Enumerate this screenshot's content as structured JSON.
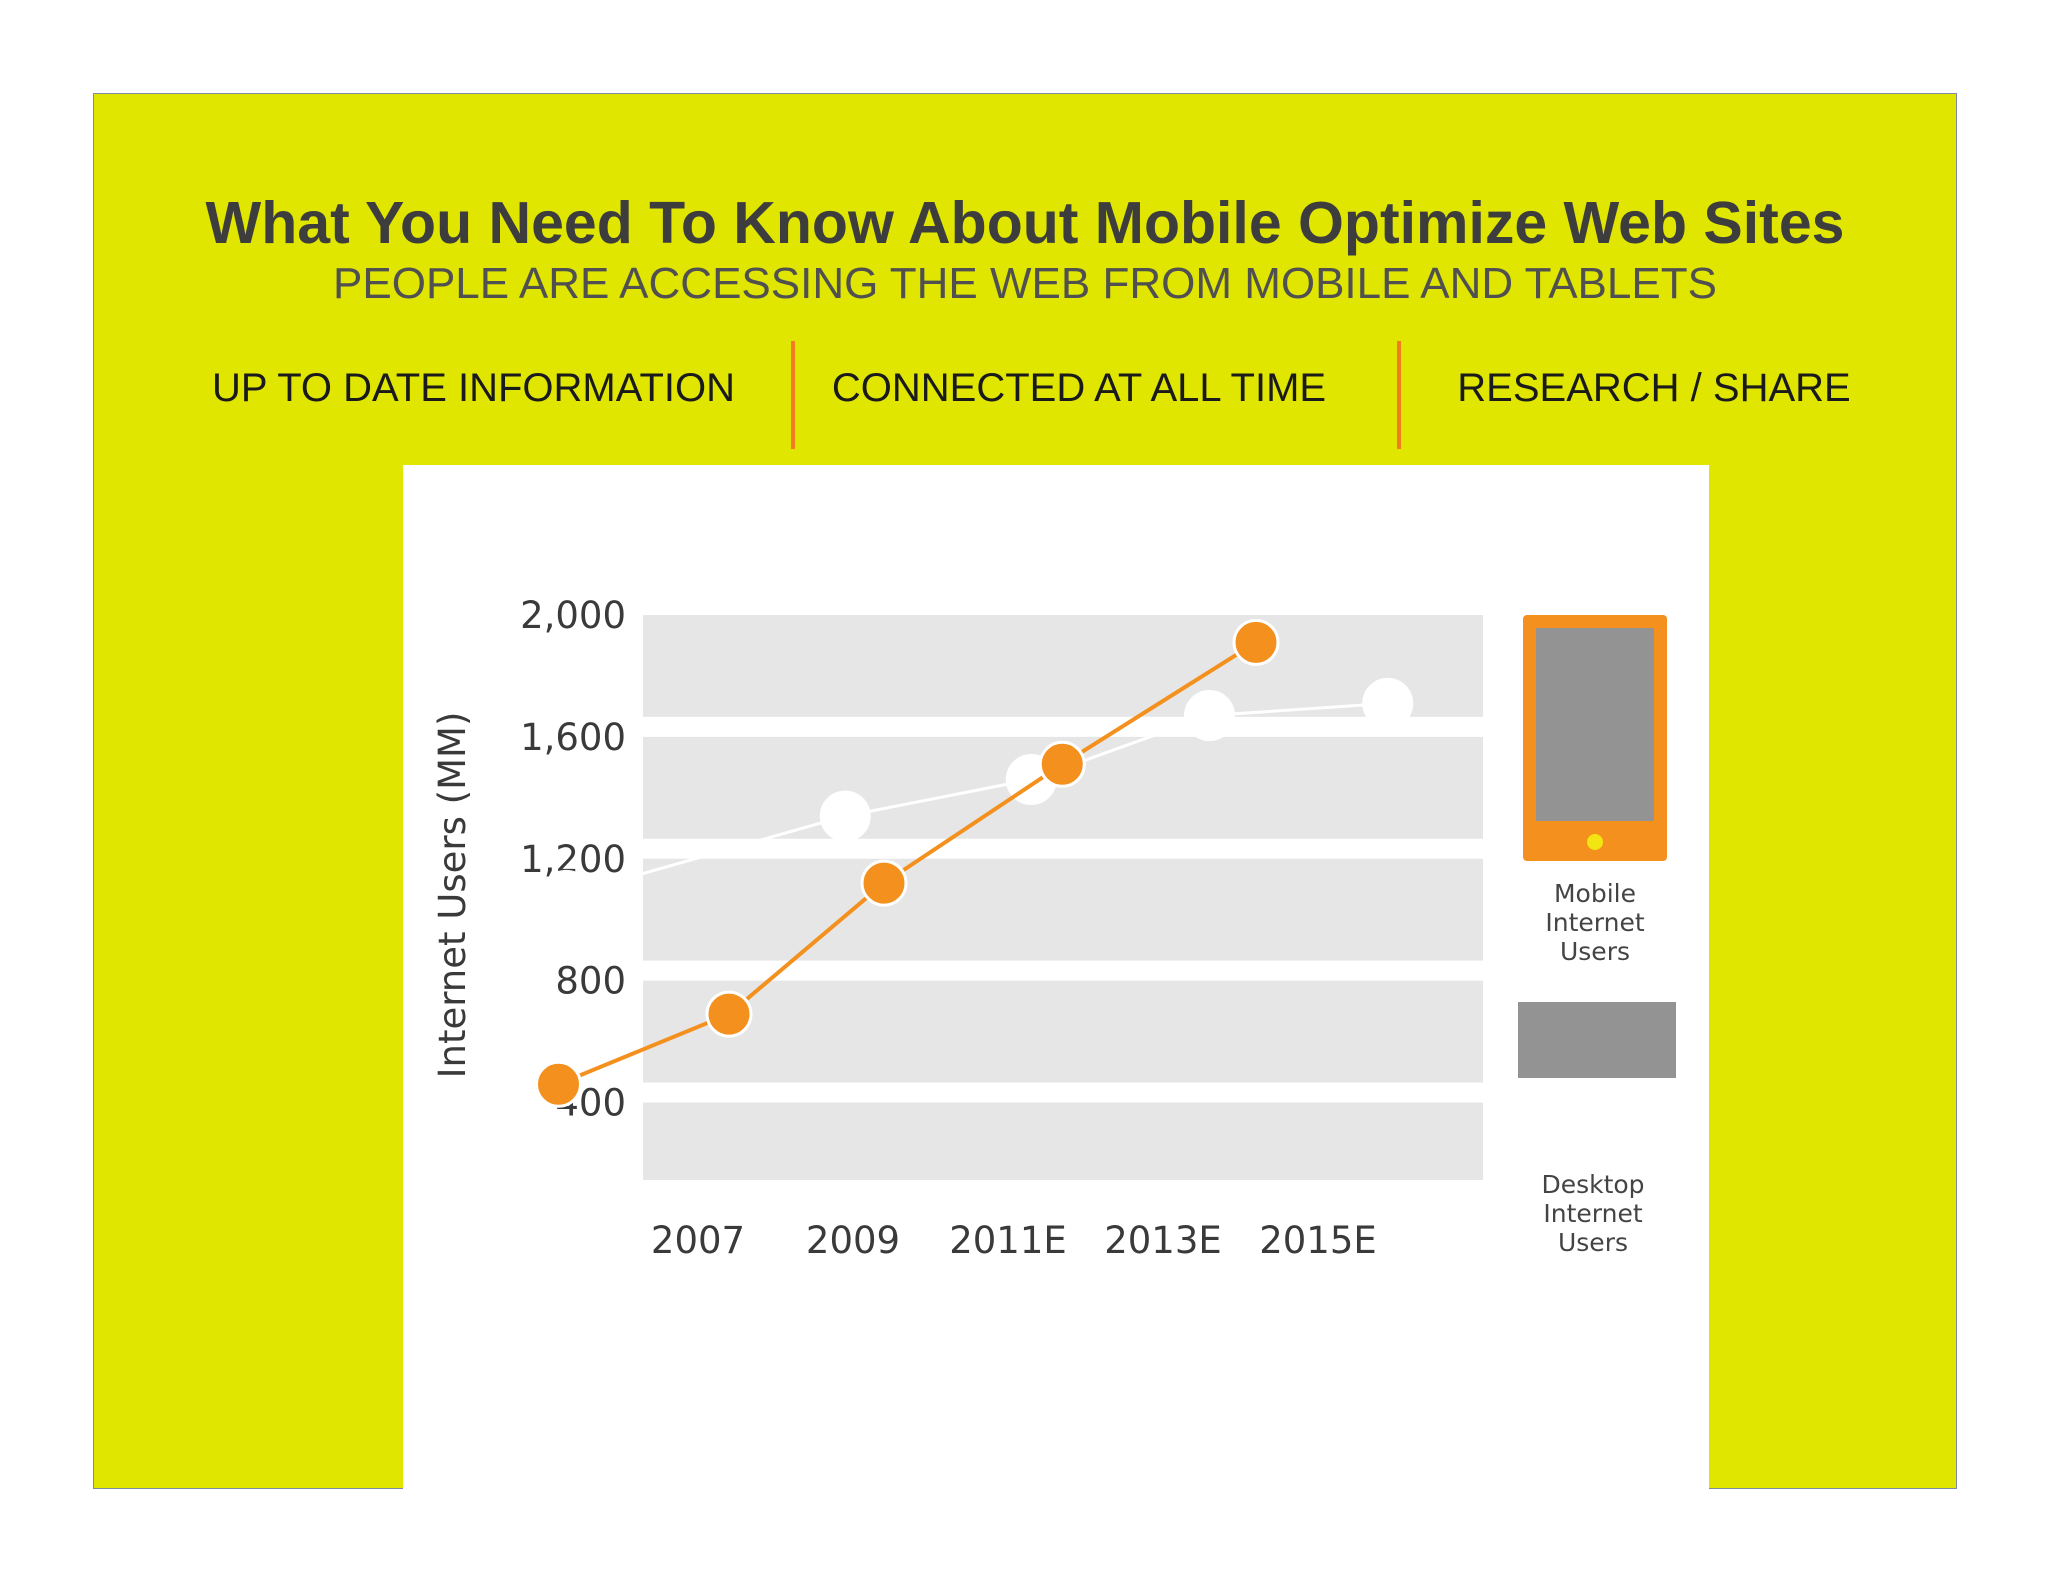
{
  "slide": {
    "title": "What You Need To Know About Mobile Optimize Web Sites",
    "subtitle": "PEOPLE ARE ACCESSING THE WEB FROM MOBILE AND TABLETS",
    "features": [
      "UP TO DATE INFORMATION",
      "CONNECTED AT ALL TIME",
      "RESEARCH / SHARE"
    ],
    "background_color": "#e0e600",
    "divider_color": "#f47b20"
  },
  "chart_data": {
    "type": "line",
    "title": "",
    "ylabel": "Internet Users (MM)",
    "xlabel": "",
    "categories": [
      "2007",
      "2009",
      "2011E",
      "2013E",
      "2015E"
    ],
    "y_ticks": [
      "2,000",
      "1,600",
      "1,200",
      "800",
      "400"
    ],
    "ylim": [
      80,
      2000
    ],
    "grid": "alternating horizontal bands",
    "legend_position": "right",
    "series": [
      {
        "name": "Desktop Internet Users",
        "color": "#ffffff",
        "marker_x": [
          0.15,
          1.95,
          3.15,
          4.3,
          5.45
        ],
        "values": [
          1080,
          1340,
          1460,
          1670,
          1710
        ]
      },
      {
        "name": "Mobile Internet Users",
        "color": "#f4901e",
        "marker_x": [
          0.1,
          1.2,
          2.2,
          3.35,
          4.6
        ],
        "values": [
          460,
          690,
          1120,
          1510,
          1910
        ]
      }
    ],
    "legend": [
      {
        "label_lines": [
          "Mobile",
          "Internet",
          "Users"
        ],
        "icon": "smartphone-icon"
      },
      {
        "label_lines": [
          "Desktop",
          "Internet",
          "Users"
        ],
        "icon": "desktop-rect-icon"
      }
    ]
  }
}
